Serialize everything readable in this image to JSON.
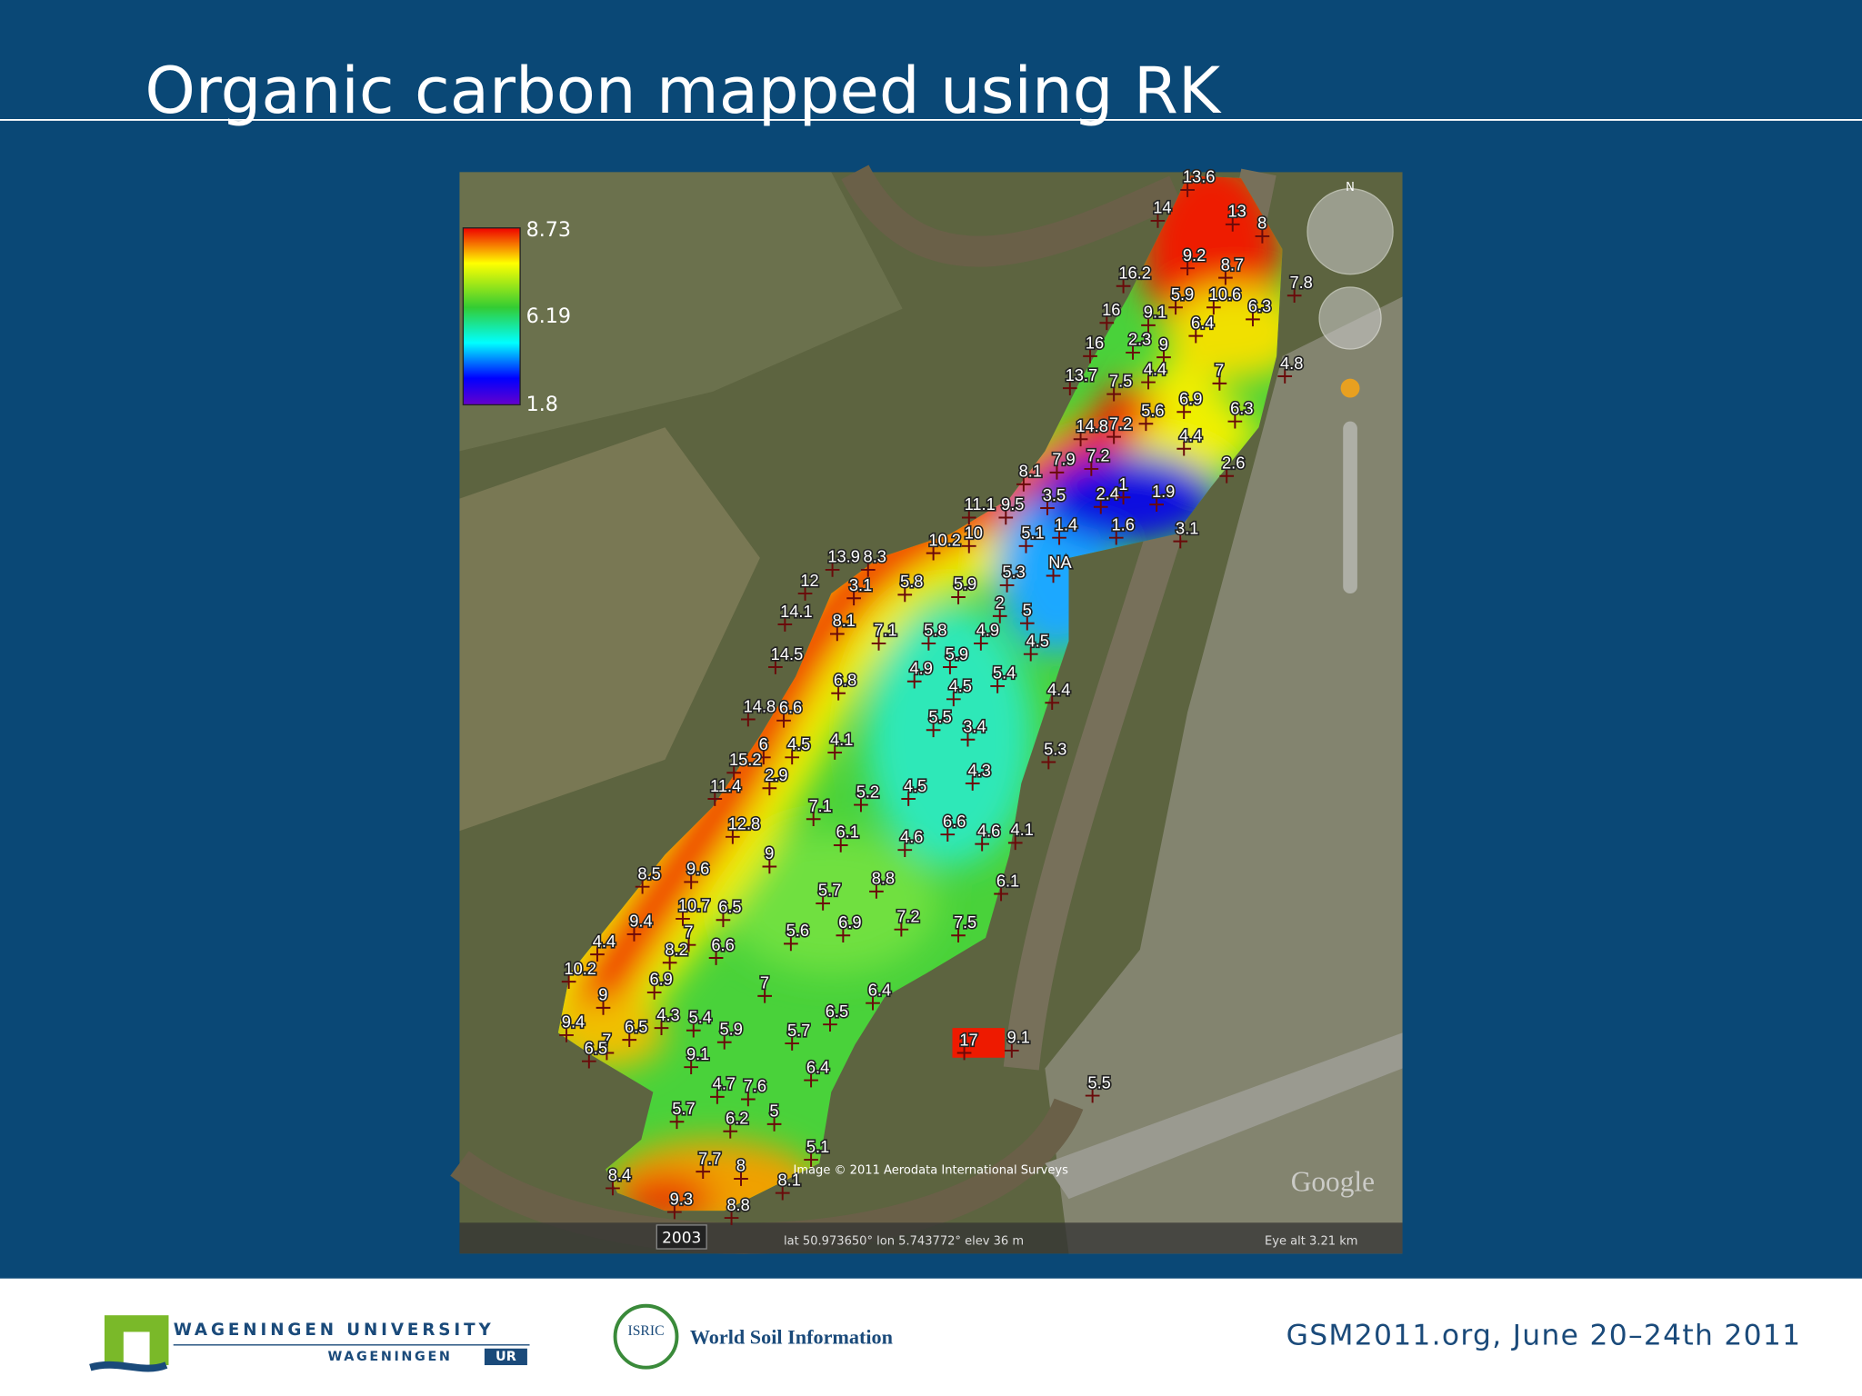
{
  "header": {
    "title": "Organic carbon mapped using RK"
  },
  "map": {
    "legend": {
      "labels": [
        "8.73",
        "6.19",
        "1.8"
      ]
    },
    "points": [
      "13.6",
      "14",
      "13",
      "8",
      "9.2",
      "8.7",
      "7.8",
      "16.2",
      "5.9",
      "10.6",
      "9.1",
      "6.3",
      "16",
      "6.4",
      "2.3",
      "9",
      "16",
      "4.8",
      "13.7",
      "7.5",
      "4.4",
      "7",
      "5.6",
      "6.9",
      "6.3",
      "14.8",
      "7.2",
      "4.4",
      "2.6",
      "7.9",
      "7.2",
      "8.1",
      "3.5",
      "2.4",
      "1",
      "1.9",
      "11.1",
      "9.5",
      "10",
      "5.1",
      "1.4",
      "1.6",
      "3.1",
      "10.2",
      "13.9",
      "8.3",
      "NA",
      "12",
      "3.1",
      "5.8",
      "5.9",
      "5.3",
      "2",
      "5",
      "14.1",
      "8.1",
      "7.1",
      "5.8",
      "4.9",
      "5.9",
      "4.5",
      "14.5",
      "6.8",
      "4.9",
      "5.4",
      "4.5",
      "4.4",
      "14.8",
      "6.6",
      "5.5",
      "3.4",
      "6",
      "4.5",
      "4.1",
      "5.3",
      "15.2",
      "2.9",
      "4.3",
      "11.4",
      "5.2",
      "4.5",
      "7.1",
      "6.6",
      "4.6",
      "4.1",
      "12.8",
      "6.1",
      "4.6",
      "9",
      "8.5",
      "9.6",
      "8.8",
      "6.1",
      "5.7",
      "10.7",
      "6.5",
      "9.4",
      "7",
      "6.9",
      "7.2",
      "7.5",
      "5.6",
      "4.4",
      "8.2",
      "6.6",
      "10.2",
      "6.9",
      "7",
      "6.4",
      "9",
      "6.5",
      "4.3",
      "5.4",
      "9.4",
      "6.5",
      "5.9",
      "5.7",
      "7",
      "6.5",
      "9.1",
      "17",
      "9.1",
      "6.4",
      "5.5",
      "4.7",
      "7.6",
      "5.7",
      "6.2",
      "5",
      "5.1",
      "7.7",
      "8",
      "8.4",
      "8.1",
      "9.3",
      "8.8"
    ],
    "compass": "N",
    "copyright": "Image © 2011 Aerodata International Surveys",
    "year": "2003",
    "status": "lat  50.973650°  lon  5.743772°  elev  36 m",
    "eye_alt": "Eye alt   3.21 km",
    "brand": "Google"
  },
  "footer": {
    "university": "WAGENINGEN UNIVERSITY",
    "wur_left": "WAGENINGEN",
    "wur_right": "UR",
    "isric": "ISRIC",
    "isric_text": "World Soil Information",
    "event": "GSM2011.org, June 20–24th 2011"
  }
}
